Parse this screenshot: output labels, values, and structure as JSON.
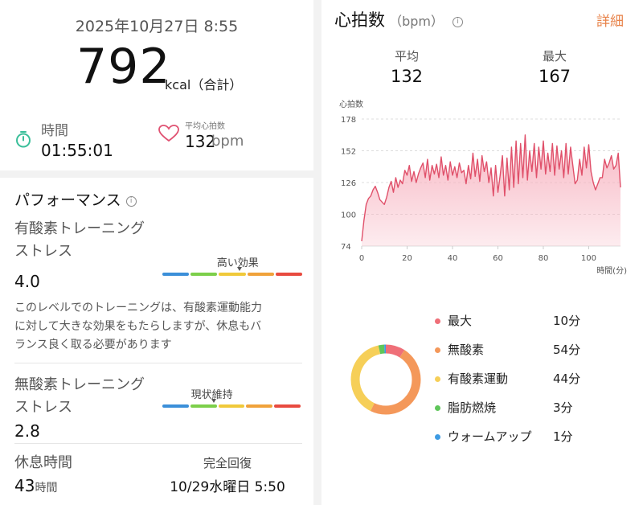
{
  "summary": {
    "datetime": "2025年10月27日 8:55",
    "calories_value": "792",
    "calories_unit": "kcal（合計）",
    "duration_label": "時間",
    "duration_value": "01:55:01",
    "avg_hr_label": "平均心拍数",
    "avg_hr_value": "132",
    "avg_hr_unit": "bpm"
  },
  "performance": {
    "title": "パフォーマンス",
    "info_icon_text": "i",
    "aerobic": {
      "title_line1": "有酸素トレーニング",
      "title_line2": "ストレス",
      "value": "4.0",
      "level_label": "高い効果",
      "level_position": 0.55,
      "description_lines": [
        "このレベルでのトレーニングは、有酸素運動能力",
        "に対して大きな効果をもたらしますが、休息もバ",
        "ランス良く取る必要があります"
      ]
    },
    "anaerobic": {
      "title_line1": "無酸素トレーニング",
      "title_line2": "ストレス",
      "value": "2.8",
      "level_label": "現状維持",
      "level_position": 0.37
    },
    "scale_colors": [
      "#3b8fd9",
      "#7ccf4a",
      "#f0c93a",
      "#f0a23a",
      "#e84a3f"
    ],
    "rest": {
      "label": "休息時間",
      "value": "43",
      "unit": "時間",
      "recovery_label": "完全回復",
      "recovery_value": "10/29水曜日 5:50"
    }
  },
  "heart_rate": {
    "title": "心拍数",
    "unit": "（bpm）",
    "info_icon_text": "i",
    "detail_link": "詳細",
    "avg_label": "平均",
    "avg_value": "132",
    "max_label": "最大",
    "max_value": "167",
    "line_color": "#e0506a",
    "fill_color": "#f7b3c0"
  },
  "chart_data": {
    "type": "area",
    "ylabel": "心拍数",
    "xlabel": "時間(分)",
    "y_ticks": [
      "178",
      "152",
      "126",
      "100",
      "74"
    ],
    "x_ticks": [
      "0",
      "20",
      "40",
      "60",
      "80",
      "100"
    ],
    "ylim": [
      74,
      178
    ],
    "xlim": [
      0,
      114
    ],
    "grid": true,
    "series": [
      {
        "x": [
          0,
          1,
          2,
          3,
          4,
          5,
          6,
          7,
          8,
          9,
          10,
          11,
          12,
          13,
          14,
          15,
          16,
          17,
          18,
          19,
          20,
          21,
          22,
          23,
          24,
          25,
          26,
          27,
          28,
          29,
          30,
          31,
          32,
          33,
          34,
          35,
          36,
          37,
          38,
          39,
          40,
          41,
          42,
          43,
          44,
          45,
          46,
          47,
          48,
          49,
          50,
          51,
          52,
          53,
          54,
          55,
          56,
          57,
          58,
          59,
          60,
          61,
          62,
          63,
          64,
          65,
          66,
          67,
          68,
          69,
          70,
          71,
          72,
          73,
          74,
          75,
          76,
          77,
          78,
          79,
          80,
          81,
          82,
          83,
          84,
          85,
          86,
          87,
          88,
          89,
          90,
          91,
          92,
          93,
          94,
          95,
          96,
          97,
          98,
          99,
          100,
          101,
          102,
          103,
          104,
          105,
          106,
          107,
          108,
          109,
          110,
          111,
          112,
          113,
          114
        ],
        "y": [
          78,
          95,
          108,
          113,
          115,
          120,
          123,
          118,
          112,
          110,
          108,
          114,
          122,
          127,
          118,
          130,
          122,
          128,
          125,
          136,
          132,
          140,
          127,
          135,
          126,
          133,
          138,
          142,
          130,
          145,
          128,
          140,
          133,
          141,
          130,
          147,
          132,
          140,
          128,
          143,
          132,
          139,
          130,
          142,
          134,
          136,
          125,
          140,
          129,
          150,
          131,
          145,
          127,
          148,
          135,
          143,
          126,
          138,
          115,
          140,
          118,
          132,
          148,
          115,
          146,
          120,
          155,
          122,
          160,
          125,
          158,
          130,
          165,
          128,
          152,
          135,
          158,
          130,
          155,
          137,
          160,
          133,
          150,
          135,
          158,
          132,
          156,
          137,
          152,
          130,
          158,
          133,
          155,
          140,
          125,
          128,
          145,
          132,
          155,
          138,
          157,
          135,
          126,
          120,
          125,
          130,
          130,
          145,
          138,
          142,
          148,
          137,
          140,
          150,
          122
        ]
      }
    ]
  },
  "zones": {
    "items": [
      {
        "label": "最大",
        "value": "10分",
        "color": "#ef6f78",
        "minutes": 10
      },
      {
        "label": "無酸素",
        "value": "54分",
        "color": "#f4985a",
        "minutes": 54
      },
      {
        "label": "有酸素運動",
        "value": "44分",
        "color": "#f6cf58",
        "minutes": 44
      },
      {
        "label": "脂肪燃焼",
        "value": "3分",
        "color": "#5fc65a",
        "minutes": 3
      },
      {
        "label": "ウォームアップ",
        "value": "1分",
        "color": "#3e9be3",
        "minutes": 1
      }
    ]
  }
}
